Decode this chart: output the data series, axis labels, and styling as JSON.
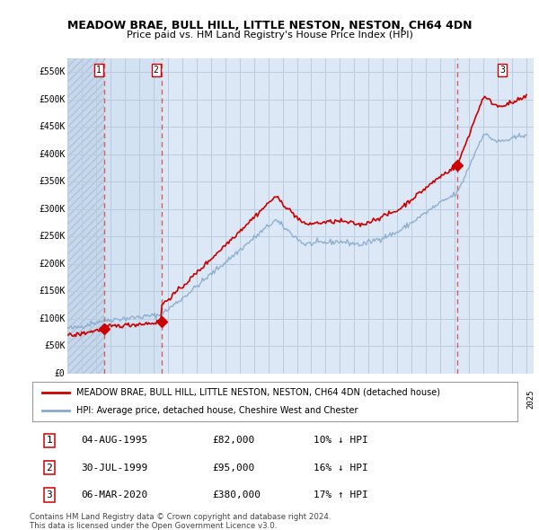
{
  "title": "MEADOW BRAE, BULL HILL, LITTLE NESTON, NESTON, CH64 4DN",
  "subtitle": "Price paid vs. HM Land Registry's House Price Index (HPI)",
  "ylim": [
    0,
    575000
  ],
  "yticks": [
    0,
    50000,
    100000,
    150000,
    200000,
    250000,
    300000,
    350000,
    400000,
    450000,
    500000,
    550000
  ],
  "ytick_labels": [
    "£0",
    "£50K",
    "£100K",
    "£150K",
    "£200K",
    "£250K",
    "£300K",
    "£350K",
    "£400K",
    "£450K",
    "£500K",
    "£550K"
  ],
  "xlim": [
    1993,
    2025.5
  ],
  "xstart": 1993,
  "xend": 2025,
  "sales": [
    {
      "date_num": 1995.585,
      "price": 82000,
      "label": "1"
    },
    {
      "date_num": 1999.578,
      "price": 95000,
      "label": "2"
    },
    {
      "date_num": 2020.178,
      "price": 380000,
      "label": "3"
    }
  ],
  "vline_color": "#dd4444",
  "sale_dot_color": "#cc0000",
  "legend_line1": "MEADOW BRAE, BULL HILL, LITTLE NESTON, NESTON, CH64 4DN (detached house)",
  "legend_line2": "HPI: Average price, detached house, Cheshire West and Chester",
  "table_rows": [
    {
      "num": "1",
      "date": "04-AUG-1995",
      "price": "£82,000",
      "change": "10% ↓ HPI"
    },
    {
      "num": "2",
      "date": "30-JUL-1999",
      "price": "£95,000",
      "change": "16% ↓ HPI"
    },
    {
      "num": "3",
      "date": "06-MAR-2020",
      "price": "£380,000",
      "change": "17% ↑ HPI"
    }
  ],
  "footnote": "Contains HM Land Registry data © Crown copyright and database right 2024.\nThis data is licensed under the Open Government Licence v3.0.",
  "plot_bg": "#dce8f5",
  "hatch_bg": "#c8d8ec",
  "grid_color": "#b8cce0",
  "red_line_color": "#cc0000",
  "blue_line_color": "#88aacc",
  "highlight_color": "#d0e4f5",
  "white_bg": "#ffffff"
}
